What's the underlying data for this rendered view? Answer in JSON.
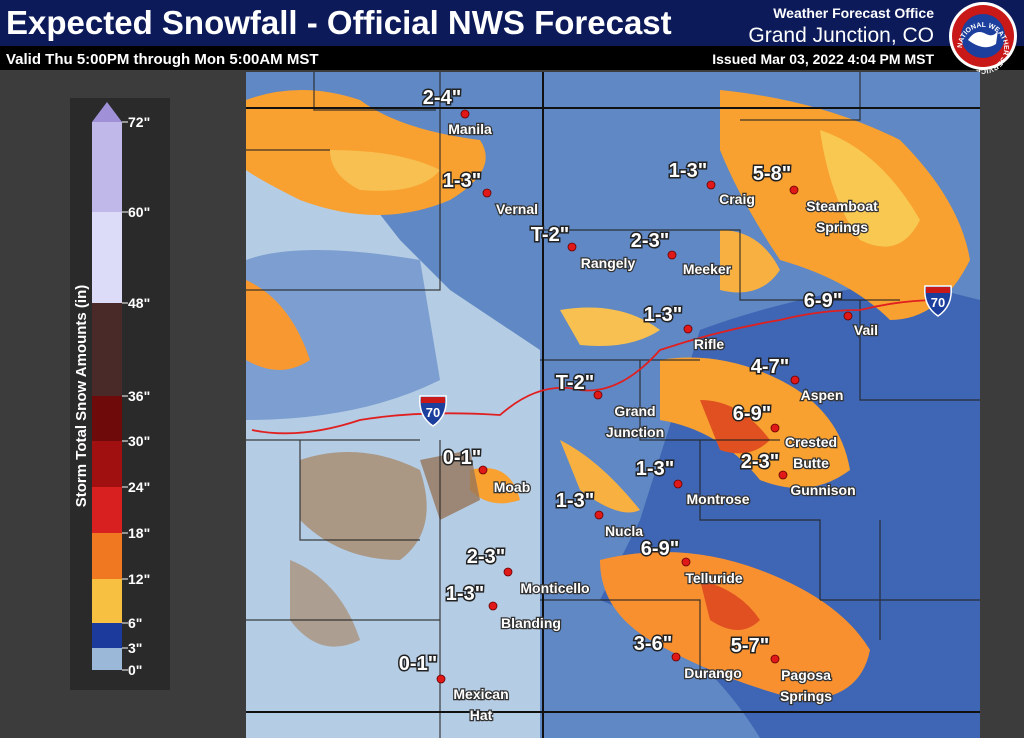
{
  "header": {
    "title": "Expected Snowfall - Official NWS Forecast",
    "subtitle": "Valid Thu 5:00PM through Mon 5:00AM MST",
    "office_line1": "Weather Forecast Office",
    "office_line2": "Grand Junction, CO",
    "issued": "Issued Mar 03, 2022 4:04 PM MST",
    "logo_text": "NATIONAL WEATHER SERVICE"
  },
  "legend": {
    "title": "Storm Total Snow Amounts (in)",
    "ticks": [
      {
        "value": 72,
        "label": "72\""
      },
      {
        "value": 60,
        "label": "60\""
      },
      {
        "value": 48,
        "label": "48\""
      },
      {
        "value": 36,
        "label": "36\""
      },
      {
        "value": 30,
        "label": "30\""
      },
      {
        "value": 24,
        "label": "24\""
      },
      {
        "value": 18,
        "label": "18\""
      },
      {
        "value": 12,
        "label": "12\""
      },
      {
        "value": 6,
        "label": "6\""
      },
      {
        "value": 3,
        "label": "3\""
      },
      {
        "value": 0,
        "label": "0\""
      }
    ],
    "colors": [
      "#c0b8e8",
      "#dcdcf8",
      "#4a2a28",
      "#6e0a0a",
      "#a01010",
      "#d82020",
      "#f07820",
      "#f8c040",
      "#1c3a9c",
      "#9cb8d8"
    ],
    "top_color": "#a090d8"
  },
  "cities": [
    {
      "name": [
        "Manila"
      ],
      "amount": "2-4\""
    },
    {
      "name": [
        "Vernal"
      ],
      "amount": "1-3\""
    },
    {
      "name": [
        "Craig"
      ],
      "amount": "1-3\""
    },
    {
      "name": [
        "Steamboat",
        "Springs"
      ],
      "amount": "5-8\""
    },
    {
      "name": [
        "Rangely"
      ],
      "amount": "T-2\""
    },
    {
      "name": [
        "Meeker"
      ],
      "amount": "2-3\""
    },
    {
      "name": [
        "Rifle"
      ],
      "amount": "1-3\""
    },
    {
      "name": [
        "Vail"
      ],
      "amount": "6-9\""
    },
    {
      "name": [
        "Grand",
        "Junction"
      ],
      "amount": "T-2\""
    },
    {
      "name": [
        "Aspen"
      ],
      "amount": "4-7\""
    },
    {
      "name": [
        "Crested",
        "Butte"
      ],
      "amount": "6-9\""
    },
    {
      "name": [
        "Gunnison"
      ],
      "amount": "2-3\""
    },
    {
      "name": [
        "Moab"
      ],
      "amount": "0-1\""
    },
    {
      "name": [
        "Montrose"
      ],
      "amount": "1-3\""
    },
    {
      "name": [
        "Nucla"
      ],
      "amount": "1-3\""
    },
    {
      "name": [
        "Telluride"
      ],
      "amount": "6-9\""
    },
    {
      "name": [
        "Monticello"
      ],
      "amount": "2-3\""
    },
    {
      "name": [
        "Blanding"
      ],
      "amount": "1-3\""
    },
    {
      "name": [
        "Durango"
      ],
      "amount": "3-6\""
    },
    {
      "name": [
        "Pagosa",
        "Springs"
      ],
      "amount": "5-7\""
    },
    {
      "name": [
        "Mexican",
        "Hat"
      ],
      "amount": "0-1\""
    }
  ],
  "interstate_shields": [
    "70",
    "70"
  ]
}
